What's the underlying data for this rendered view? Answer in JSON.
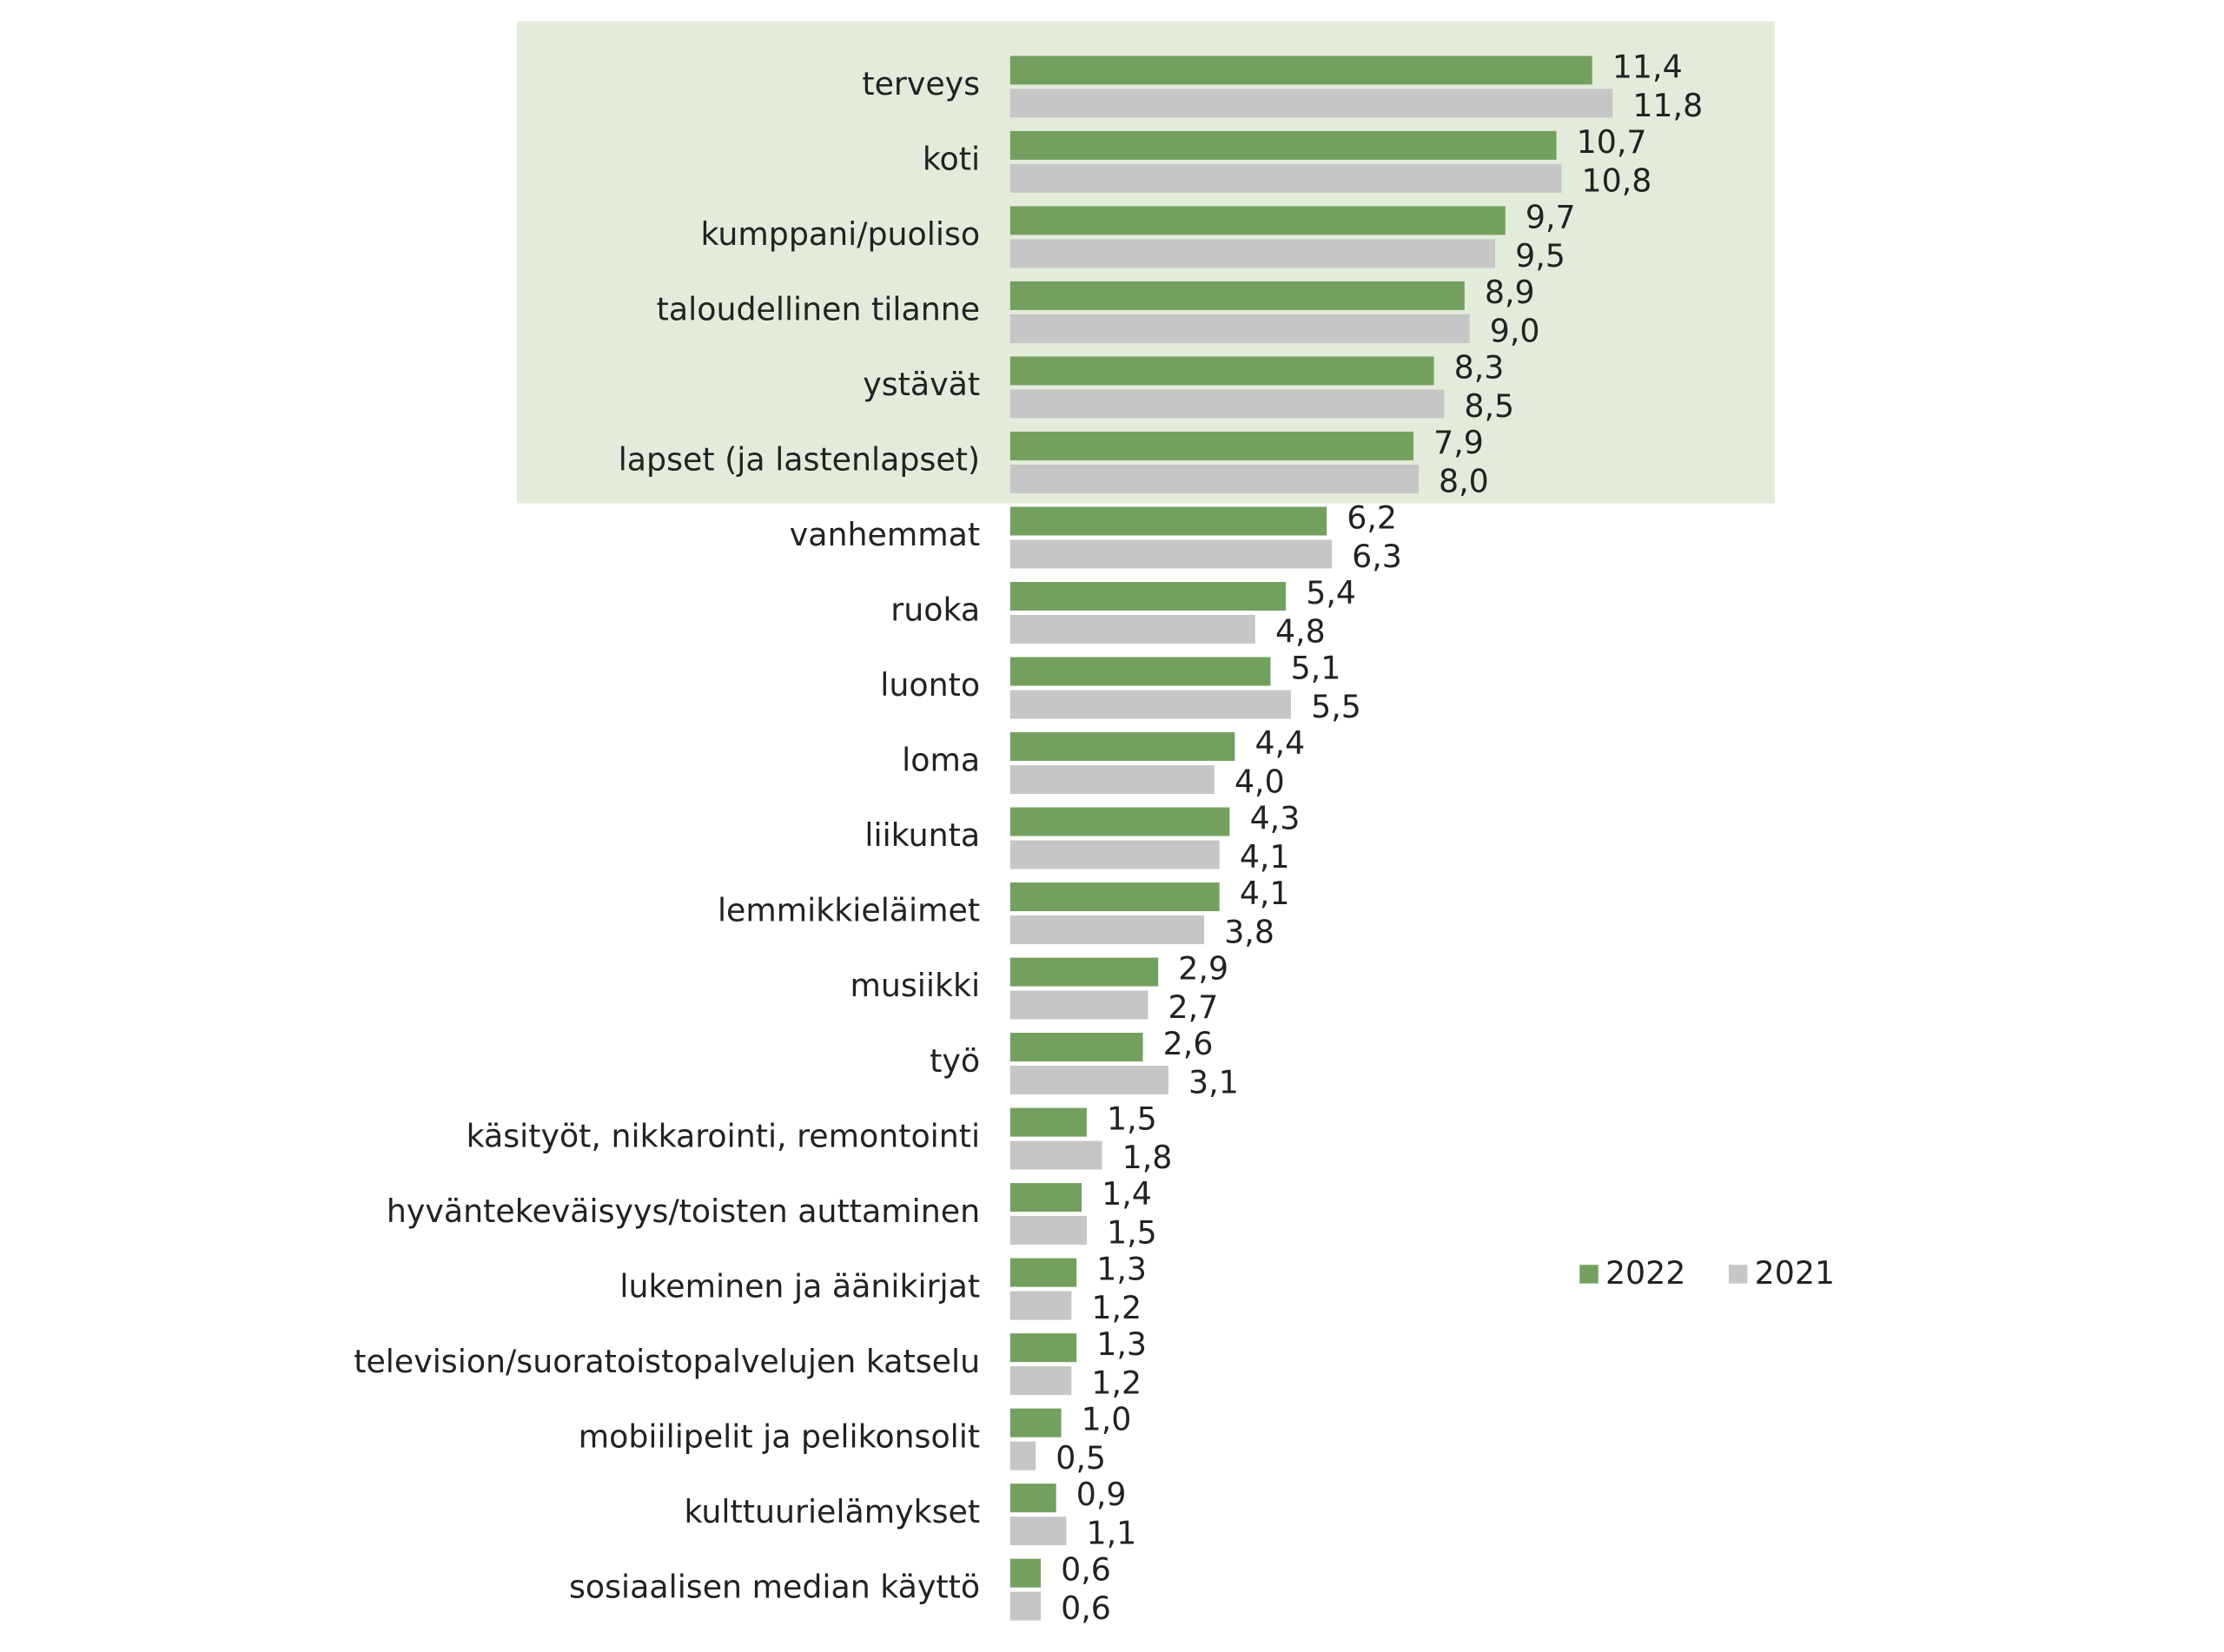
{
  "chart_data": {
    "type": "hbar",
    "categories": [
      "terveys",
      "koti",
      "kumppani/puoliso",
      "taloudellinen tilanne",
      "ystävät",
      "lapset (ja lastenlapset)",
      "vanhemmat",
      "ruoka",
      "luonto",
      "loma",
      "liikunta",
      "lemmikkieläimet",
      "musiikki",
      "työ",
      "käsityöt, nikkarointi, remontointi",
      "hyväntekeväisyys/toisten auttaminen",
      "lukeminen ja äänikirjat",
      "television/suoratoistopalvelujen katselu",
      "mobiilipelit ja pelikonsolit",
      "kulttuurielämykset",
      "sosiaalisen median käyttö"
    ],
    "series": [
      {
        "name": "2022",
        "color": "#74a05f",
        "values": [
          11.4,
          10.7,
          9.7,
          8.9,
          8.3,
          7.9,
          6.2,
          5.4,
          5.1,
          4.4,
          4.3,
          4.1,
          2.9,
          2.6,
          1.5,
          1.4,
          1.3,
          1.3,
          1.0,
          0.9,
          0.6
        ],
        "value_labels": [
          "11,4",
          "10,7",
          "9,7",
          "8,9",
          "8,3",
          "7,9",
          "6,2",
          "5,4",
          "5,1",
          "4,4",
          "4,3",
          "4,1",
          "2,9",
          "2,6",
          "1,5",
          "1,4",
          "1,3",
          "1,3",
          "1,0",
          "0,9",
          "0,6"
        ]
      },
      {
        "name": "2021",
        "color": "#c6c6c6",
        "values": [
          11.8,
          10.8,
          9.5,
          9.0,
          8.5,
          8.0,
          6.3,
          4.8,
          5.5,
          4.0,
          4.1,
          3.8,
          2.7,
          3.1,
          1.8,
          1.5,
          1.2,
          1.2,
          0.5,
          1.1,
          0.6
        ],
        "value_labels": [
          "11,8",
          "10,8",
          "9,5",
          "9,0",
          "8,5",
          "8,0",
          "6,3",
          "4,8",
          "5,5",
          "4,0",
          "4,1",
          "3,8",
          "2,7",
          "3,1",
          "1,8",
          "1,5",
          "1,2",
          "1,2",
          "0,5",
          "1,1",
          "0,6"
        ]
      }
    ],
    "legend": "right"
  }
}
